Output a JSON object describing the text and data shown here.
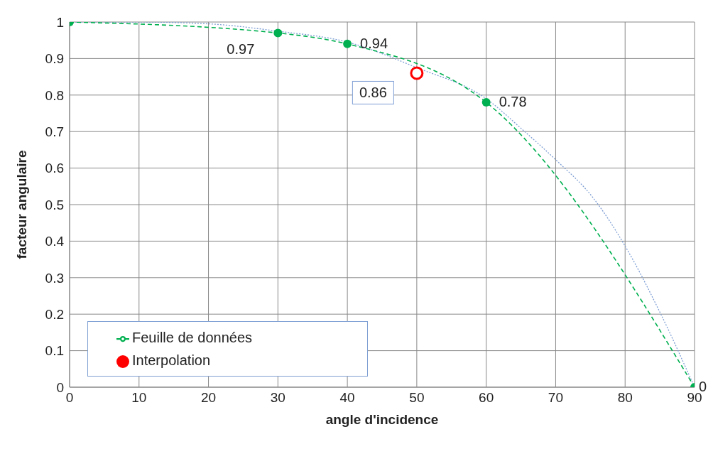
{
  "chart_data": {
    "type": "line",
    "xlabel": "angle d'incidence",
    "ylabel": "facteur angulaire",
    "xlim": [
      0,
      90
    ],
    "xticks": [
      0,
      10,
      20,
      30,
      40,
      50,
      60,
      70,
      80,
      90
    ],
    "ylim": [
      0,
      1
    ],
    "yticks": [
      0,
      0.1,
      0.2,
      0.3,
      0.4,
      0.5,
      0.6,
      0.7,
      0.8,
      0.9,
      1
    ],
    "grid": true,
    "legend": "bottom left",
    "series": [
      {
        "type": "line",
        "color": "#7f9fd4",
        "line_style": "dotted",
        "marker": "none",
        "x": [
          0,
          10,
          20,
          30,
          40,
          50,
          60,
          65.3,
          70,
          75.5,
          79.8,
          85.2,
          90
        ],
        "values": [
          1,
          1,
          0.995,
          0.975,
          0.945,
          0.875,
          0.79,
          0.704,
          0.623,
          0.516,
          0.393,
          0.198,
          0
        ]
      },
      {
        "type": "line",
        "name": "Feuille de données",
        "color": "#00b050",
        "line_style": "dashed",
        "marker": "circle",
        "x": [
          0,
          30,
          40,
          60,
          90
        ],
        "values": [
          1,
          0.97,
          0.94,
          0.78,
          0
        ],
        "value_labels": [
          null,
          "0.97",
          "0.94",
          "0.78",
          "0"
        ]
      },
      {
        "type": "scatter",
        "name": "Interpolation",
        "color": "#ff0000",
        "marker": "circle",
        "x": [
          50
        ],
        "values": [
          0.86
        ],
        "value_labels": [
          "0.86"
        ]
      }
    ]
  }
}
